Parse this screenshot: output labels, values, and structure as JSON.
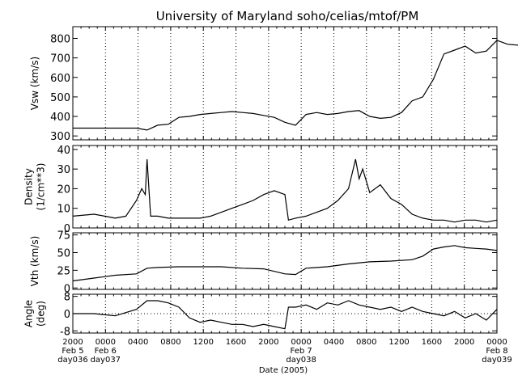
{
  "title": "University of Maryland  soho/celias/mtof/PM",
  "xlabel": "Date (2005)",
  "chart_data": [
    {
      "type": "line",
      "ylabel": "Vsw (km/s)",
      "ylim": [
        280,
        860
      ],
      "yticks": [
        300,
        400,
        500,
        600,
        700,
        800
      ],
      "x": [
        0,
        6,
        12,
        18,
        21,
        24,
        27,
        30,
        33,
        36,
        39,
        42,
        45,
        48,
        51,
        54,
        57,
        60,
        63,
        66,
        69,
        72,
        75,
        78,
        81,
        84,
        87,
        90,
        93,
        96,
        99,
        102,
        105,
        108,
        111,
        114,
        117,
        120,
        123,
        126,
        129,
        132,
        135,
        138
      ],
      "values": [
        340,
        340,
        340,
        340,
        330,
        355,
        360,
        395,
        400,
        410,
        415,
        420,
        425,
        420,
        415,
        405,
        395,
        370,
        355,
        410,
        420,
        410,
        415,
        425,
        430,
        400,
        390,
        395,
        420,
        480,
        500,
        590,
        720,
        740,
        760,
        725,
        735,
        790,
        770,
        765,
        null,
        null,
        null,
        null
      ],
      "x_unit": "hours since Feb 5 2005 20:00"
    },
    {
      "type": "line",
      "ylabel": "Density (1/cm**3)",
      "ylim": [
        0,
        42
      ],
      "yticks": [
        0,
        10,
        20,
        30,
        40
      ],
      "x": [
        0,
        6,
        9,
        12,
        15,
        18,
        19.5,
        20.5,
        21,
        22,
        24,
        27,
        30,
        33,
        36,
        39,
        42,
        45,
        48,
        51,
        54,
        57,
        60,
        61,
        63,
        66,
        69,
        72,
        75,
        78,
        80,
        81,
        82,
        84,
        87,
        90,
        93,
        96,
        99,
        102,
        105,
        108,
        111,
        114,
        117,
        120
      ],
      "values": [
        6,
        7,
        6,
        5,
        6,
        14,
        20,
        17,
        35,
        6,
        6,
        5,
        5,
        5,
        5,
        6,
        8,
        10,
        12,
        14,
        17,
        19,
        17,
        4,
        5,
        6,
        8,
        10,
        14,
        20,
        35,
        25,
        30,
        18,
        22,
        15,
        12,
        7,
        5,
        4,
        4,
        3,
        4,
        4,
        3,
        4
      ],
      "x_unit": "hours since Feb 5 2005 20:00"
    },
    {
      "type": "line",
      "ylabel": "Vth (km/s)",
      "ylim": [
        -2,
        78
      ],
      "yticks": [
        0,
        25,
        50,
        75
      ],
      "x": [
        0,
        6,
        12,
        18,
        21,
        24,
        30,
        36,
        42,
        48,
        54,
        60,
        63,
        66,
        72,
        78,
        84,
        90,
        96,
        99,
        102,
        105,
        108,
        111,
        114,
        117,
        120
      ],
      "values": [
        10,
        14,
        18,
        20,
        28,
        29,
        30,
        30,
        30,
        28,
        27,
        20,
        19,
        28,
        30,
        34,
        37,
        38,
        40,
        45,
        55,
        58,
        60,
        57,
        56,
        55,
        53
      ],
      "x_unit": "hours since Feb 5 2005 20:00"
    },
    {
      "type": "line",
      "ylabel": "Angle (deg)",
      "ylim": [
        -9,
        9
      ],
      "yticks": [
        -8,
        0,
        8
      ],
      "reference_line": 0,
      "x": [
        0,
        6,
        12,
        18,
        21,
        24,
        27,
        30,
        33,
        36,
        39,
        42,
        45,
        48,
        51,
        54,
        57,
        60,
        61,
        63,
        66,
        69,
        72,
        75,
        78,
        81,
        84,
        87,
        90,
        93,
        96,
        99,
        102,
        105,
        108,
        111,
        114,
        117,
        120
      ],
      "values": [
        0,
        0,
        -1,
        2,
        6,
        6,
        5,
        3,
        -2,
        -4,
        -3,
        -4,
        -5,
        -5,
        -6,
        -5,
        -6,
        -7,
        3,
        3,
        4,
        2,
        5,
        4,
        6,
        4,
        3,
        2,
        3,
        1,
        3,
        1,
        0,
        -1,
        1,
        -2,
        0,
        -3,
        2
      ],
      "x_unit": "hours since Feb 5 2005 20:00"
    }
  ],
  "xaxis": {
    "range": [
      0,
      148
    ],
    "ticks": [
      {
        "x": 0,
        "label": "2000",
        "sub": [
          "Feb 5",
          "day036"
        ]
      },
      {
        "x": 4,
        "label": "0000",
        "sub": [
          "Feb 6",
          "day037"
        ]
      },
      {
        "x": 8,
        "label": "0400",
        "sub": []
      },
      {
        "x": 12,
        "label": "0800",
        "sub": []
      },
      {
        "x": 16,
        "label": "1200",
        "sub": []
      },
      {
        "x": 20,
        "label": "1600",
        "sub": []
      },
      {
        "x": 24,
        "label": "2000",
        "sub": []
      },
      {
        "x": 28,
        "label": "0000",
        "sub": [
          "Feb 7",
          "day038"
        ]
      },
      {
        "x": 32,
        "label": "0400",
        "sub": []
      },
      {
        "x": 36,
        "label": "0800",
        "sub": []
      },
      {
        "x": 40,
        "label": "1200",
        "sub": []
      },
      {
        "x": 44,
        "label": "1600",
        "sub": []
      },
      {
        "x": 48,
        "label": "2000",
        "sub": []
      },
      {
        "x": 52,
        "label": "0000",
        "sub": [
          "Feb 8",
          "day039"
        ]
      }
    ]
  }
}
